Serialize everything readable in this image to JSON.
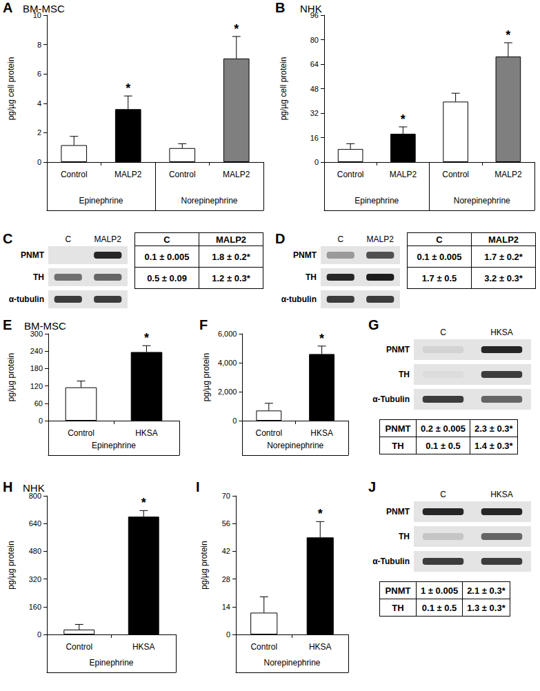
{
  "chart_data": [
    {
      "panel": "A",
      "title": "BM-MSC",
      "type": "bar",
      "ylabel": "pg/µg cell protein",
      "categories": [
        "Control",
        "MALP2",
        "Control",
        "MALP2"
      ],
      "group_labels": [
        "Epinephrine",
        "Norepinephrine"
      ],
      "values": [
        1.15,
        3.6,
        0.95,
        7.05
      ],
      "errors": [
        0.6,
        0.9,
        0.3,
        1.5
      ],
      "value_marks": [
        null,
        "*",
        null,
        "*"
      ],
      "colors": [
        "#ffffff",
        "#000000",
        "#ffffff",
        "#7f7f7f"
      ],
      "ylim": [
        0,
        10
      ],
      "yticks": [
        0,
        2,
        4,
        6,
        8,
        10
      ]
    },
    {
      "panel": "B",
      "title": "NHK",
      "type": "bar",
      "ylabel": "pg/µg cell protein",
      "categories": [
        "Control",
        "MALP2",
        "Control",
        "MALP2"
      ],
      "group_labels": [
        "Epinephrine",
        "Norepinephrine"
      ],
      "values": [
        8.5,
        18.5,
        39.5,
        69
      ],
      "errors": [
        3.5,
        4.5,
        5.5,
        9
      ],
      "value_marks": [
        null,
        "*",
        null,
        "*"
      ],
      "colors": [
        "#ffffff",
        "#000000",
        "#ffffff",
        "#7f7f7f"
      ],
      "ylim": [
        0,
        96
      ],
      "yticks": [
        0,
        16,
        32,
        48,
        64,
        80,
        96
      ]
    },
    {
      "panel": "E",
      "title": "BM-MSC",
      "type": "bar",
      "ylabel": "pg/µg protein",
      "categories": [
        "Control",
        "HKSA"
      ],
      "group_labels": [
        "Epinephrine"
      ],
      "values": [
        115,
        237
      ],
      "errors": [
        22,
        22
      ],
      "value_marks": [
        null,
        "*"
      ],
      "colors": [
        "#ffffff",
        "#000000"
      ],
      "ylim": [
        0,
        300
      ],
      "yticks": [
        0,
        60,
        120,
        180,
        240,
        300
      ]
    },
    {
      "panel": "F",
      "type": "bar",
      "ylabel": "pg/µg protein",
      "categories": [
        "Control",
        "HKSA"
      ],
      "group_labels": [
        "Norepinephrine"
      ],
      "values": [
        700,
        4600
      ],
      "errors": [
        500,
        550
      ],
      "value_marks": [
        null,
        "*"
      ],
      "colors": [
        "#ffffff",
        "#000000"
      ],
      "ylim": [
        0,
        6000
      ],
      "yticks": [
        0,
        {
          "value": 2000,
          "label": "2,000"
        },
        {
          "value": 4000,
          "label": "4,000"
        },
        {
          "value": 6000,
          "label": "6,000"
        }
      ]
    },
    {
      "panel": "H",
      "title": "NHK",
      "type": "bar",
      "ylabel": "pg/µg protein",
      "categories": [
        "Control",
        "HKSA"
      ],
      "group_labels": [
        "Epinephrine"
      ],
      "values": [
        28,
        680
      ],
      "errors": [
        30,
        35
      ],
      "value_marks": [
        null,
        "*"
      ],
      "colors": [
        "#ffffff",
        "#000000"
      ],
      "ylim": [
        0,
        800
      ],
      "yticks": [
        0,
        160,
        320,
        480,
        640,
        800
      ]
    },
    {
      "panel": "I",
      "type": "bar",
      "ylabel": "pg/µg protein",
      "categories": [
        "Control",
        "HKSA"
      ],
      "group_labels": [
        "Norepinephrine"
      ],
      "values": [
        11,
        49
      ],
      "errors": [
        8,
        8
      ],
      "value_marks": [
        null,
        "*"
      ],
      "colors": [
        "#ffffff",
        "#000000"
      ],
      "ylim": [
        0,
        70
      ],
      "yticks": [
        0,
        14,
        28,
        42,
        56,
        70
      ]
    }
  ],
  "blots": [
    {
      "panel": "C",
      "lanes": [
        "C",
        "MALP2"
      ],
      "rows": [
        "PNMT",
        "TH",
        "α-tubulin"
      ],
      "table": {
        "header": [
          "C",
          "MALP2"
        ],
        "rows": [
          [
            "0.1 ± 0.005",
            "1.8 ± 0.2*"
          ],
          [
            "0.5 ± 0.09",
            "1.2 ± 0.3*"
          ]
        ]
      }
    },
    {
      "panel": "D",
      "lanes": [
        "C",
        "MALP2"
      ],
      "rows": [
        "PNMT",
        "TH",
        "α-tubulin"
      ],
      "table": {
        "header": [
          "C",
          "MALP2"
        ],
        "rows": [
          [
            "0.1 ± 0.005",
            "1.7 ± 0.2*"
          ],
          [
            "1.7 ± 0.5",
            "3.2 ± 0.3*"
          ]
        ]
      }
    },
    {
      "panel": "G",
      "lanes": [
        "C",
        "HKSA"
      ],
      "rows": [
        "PNMT",
        "TH",
        "α-Tubulin"
      ],
      "table": {
        "rows": [
          [
            "PNMT",
            "0.2 ± 0.005",
            "2.3 ± 0.3*"
          ],
          [
            "TH",
            "0.1 ± 0.5",
            "1.4 ± 0.3*"
          ]
        ]
      }
    },
    {
      "panel": "J",
      "lanes": [
        "C",
        "HKSA"
      ],
      "rows": [
        "PNMT",
        "TH",
        "α-Tubulin"
      ],
      "table": {
        "rows": [
          [
            "PNMT",
            "1 ± 0.005",
            "2.1 ± 0.3*"
          ],
          [
            "TH",
            "0.1 ± 0.5",
            "1.3 ± 0.3*"
          ]
        ]
      }
    }
  ]
}
